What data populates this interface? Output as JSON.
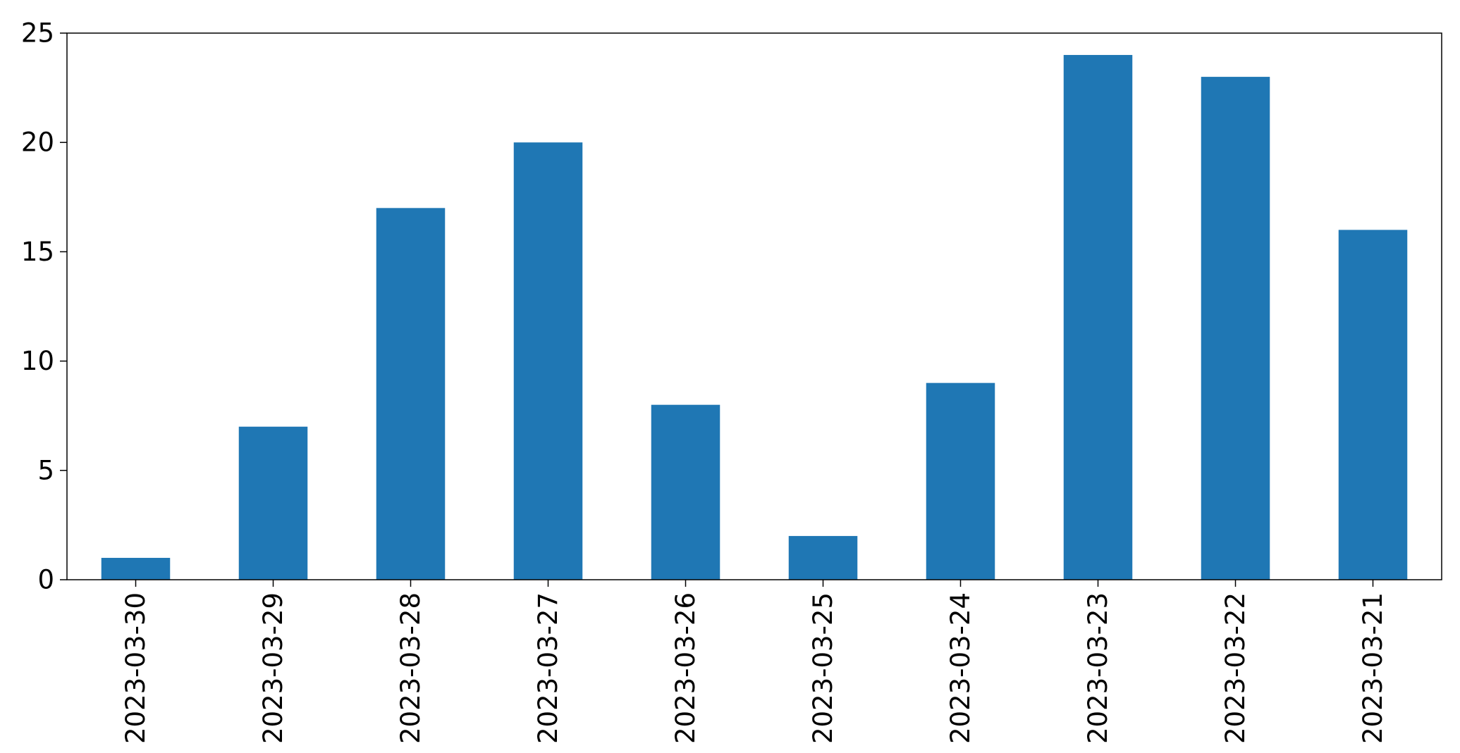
{
  "chart_data": {
    "type": "bar",
    "title": "",
    "xlabel": "",
    "ylabel": "",
    "categories": [
      "2023-03-30",
      "2023-03-29",
      "2023-03-28",
      "2023-03-27",
      "2023-03-26",
      "2023-03-25",
      "2023-03-24",
      "2023-03-23",
      "2023-03-22",
      "2023-03-21"
    ],
    "values": [
      1,
      7,
      17,
      20,
      8,
      2,
      9,
      24,
      23,
      16
    ],
    "ylim": [
      0,
      25
    ],
    "yticks": [
      "0",
      "5",
      "10",
      "15",
      "20",
      "25"
    ],
    "bar_color": "#1f77b4",
    "grid": false,
    "legend": "none"
  }
}
